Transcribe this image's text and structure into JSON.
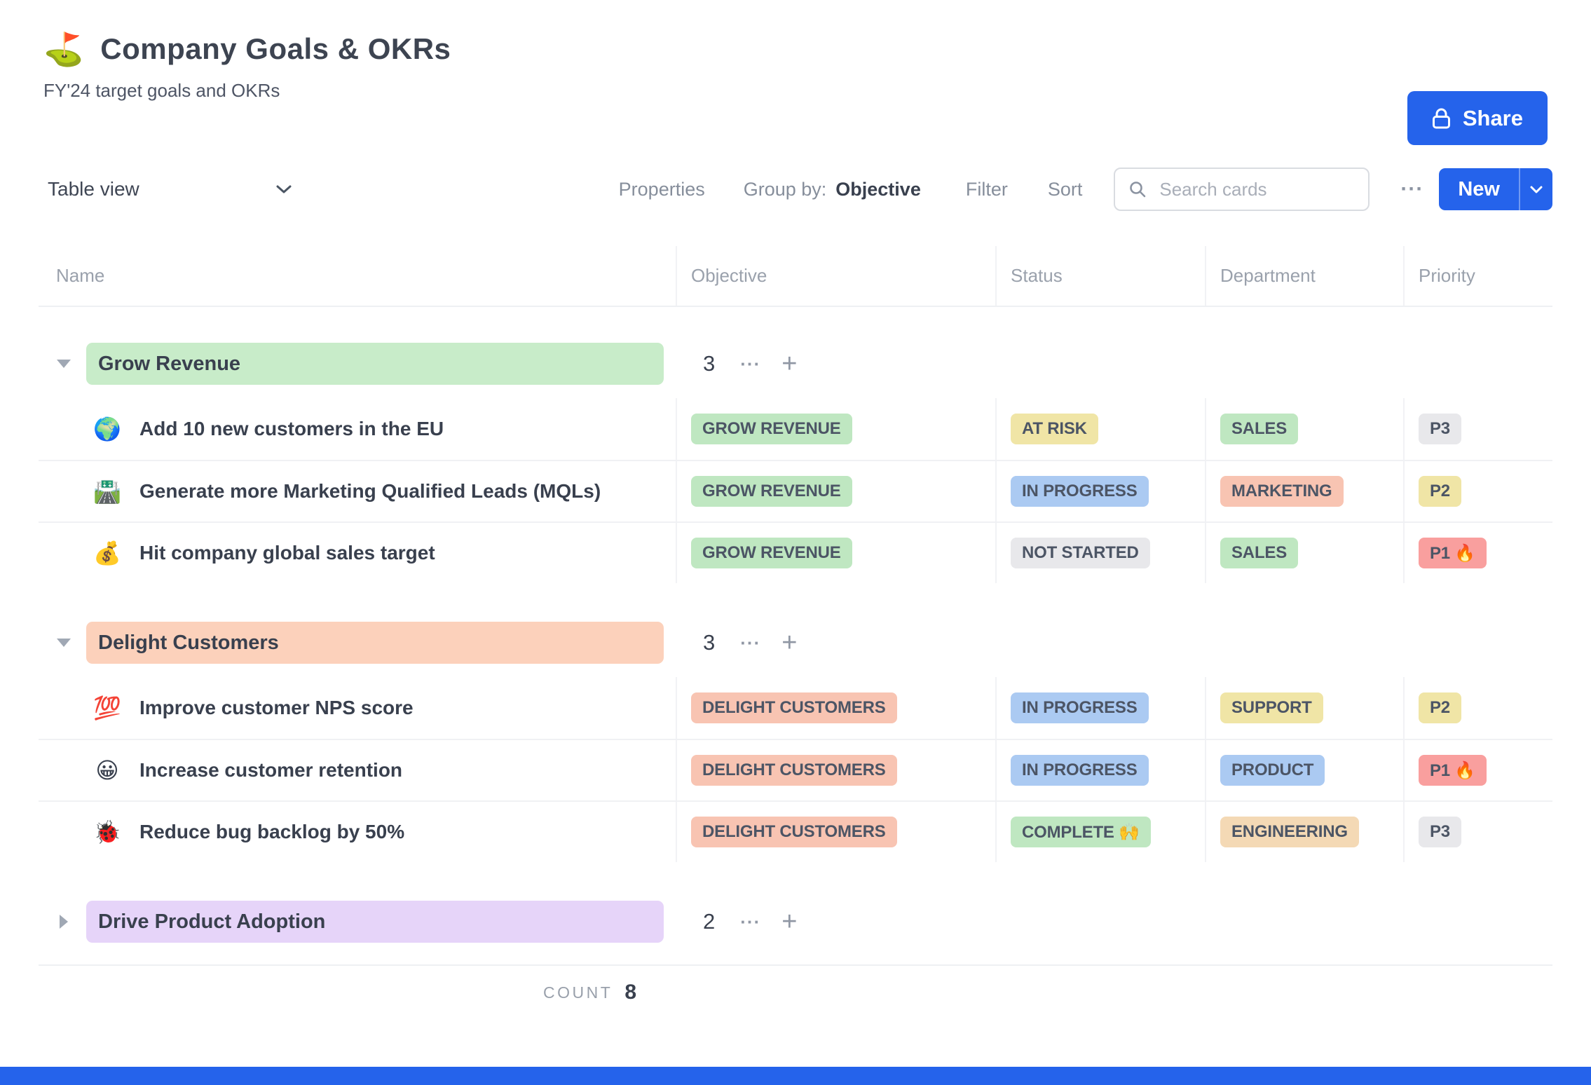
{
  "palette": {
    "green": "#bfe7c1",
    "yellow": "#f0e5a6",
    "blue": "#abcaf2",
    "salmon": "#f8c4b2",
    "tan": "#f4d9b5",
    "gray": "#e8e8eb",
    "red": "#f99f9e",
    "group_green": "#c8ecc9",
    "group_peach": "#fcd1bb",
    "group_purple": "#e6d4f9",
    "accent_blue": "#2563eb"
  },
  "icons": {
    "more": "···",
    "plus": "+"
  },
  "header": {
    "emoji": "⛳",
    "title": "Company Goals & OKRs",
    "subtitle": "FY'24 target goals and OKRs",
    "share": "Share"
  },
  "toolbar": {
    "view": "Table view",
    "properties": "Properties",
    "group_by": "Group by:",
    "group_by_value": "Objective",
    "filter": "Filter",
    "sort": "Sort",
    "search_placeholder": "Search cards",
    "new": "New"
  },
  "table": {
    "columns": [
      "Name",
      "Objective",
      "Status",
      "Department",
      "Priority"
    ],
    "groups": [
      {
        "label": "Grow Revenue",
        "color": "group_green",
        "count": "3",
        "collapsed": false,
        "rows": [
          {
            "emoji": "🌍",
            "name": "Add 10 new customers in the EU",
            "objective": {
              "text": "GROW REVENUE",
              "color": "green"
            },
            "status": {
              "text": "AT RISK",
              "color": "yellow"
            },
            "department": {
              "text": "SALES",
              "color": "green"
            },
            "priority": {
              "text": "P3",
              "color": "gray"
            }
          },
          {
            "emoji": "🛣️",
            "name": "Generate more Marketing Qualified Leads (MQLs)",
            "objective": {
              "text": "GROW REVENUE",
              "color": "green"
            },
            "status": {
              "text": "IN PROGRESS",
              "color": "blue"
            },
            "department": {
              "text": "MARKETING",
              "color": "salmon"
            },
            "priority": {
              "text": "P2",
              "color": "yellow"
            }
          },
          {
            "emoji": "💰",
            "name": "Hit company global sales target",
            "objective": {
              "text": "GROW REVENUE",
              "color": "green"
            },
            "status": {
              "text": "NOT STARTED",
              "color": "gray"
            },
            "department": {
              "text": "SALES",
              "color": "green"
            },
            "priority": {
              "text": "P1 🔥",
              "color": "red"
            }
          }
        ]
      },
      {
        "label": "Delight Customers",
        "color": "group_peach",
        "count": "3",
        "collapsed": false,
        "rows": [
          {
            "emoji": "💯",
            "name": "Improve customer NPS score",
            "objective": {
              "text": "DELIGHT CUSTOMERS",
              "color": "salmon"
            },
            "status": {
              "text": "IN PROGRESS",
              "color": "blue"
            },
            "department": {
              "text": "SUPPORT",
              "color": "yellow"
            },
            "priority": {
              "text": "P2",
              "color": "yellow"
            }
          },
          {
            "emoji": "😀",
            "name": "Increase customer retention",
            "objective": {
              "text": "DELIGHT CUSTOMERS",
              "color": "salmon"
            },
            "status": {
              "text": "IN PROGRESS",
              "color": "blue"
            },
            "department": {
              "text": "PRODUCT",
              "color": "blue"
            },
            "priority": {
              "text": "P1 🔥",
              "color": "red"
            }
          },
          {
            "emoji": "🐞",
            "name": "Reduce bug backlog by 50%",
            "objective": {
              "text": "DELIGHT CUSTOMERS",
              "color": "salmon"
            },
            "status": {
              "text": "COMPLETE 🙌",
              "color": "green"
            },
            "department": {
              "text": "ENGINEERING",
              "color": "tan"
            },
            "priority": {
              "text": "P3",
              "color": "gray"
            }
          }
        ]
      },
      {
        "label": "Drive Product Adoption",
        "color": "group_purple",
        "count": "2",
        "collapsed": true,
        "rows": []
      }
    ],
    "footer": {
      "count_label": "COUNT",
      "count_value": "8"
    }
  }
}
